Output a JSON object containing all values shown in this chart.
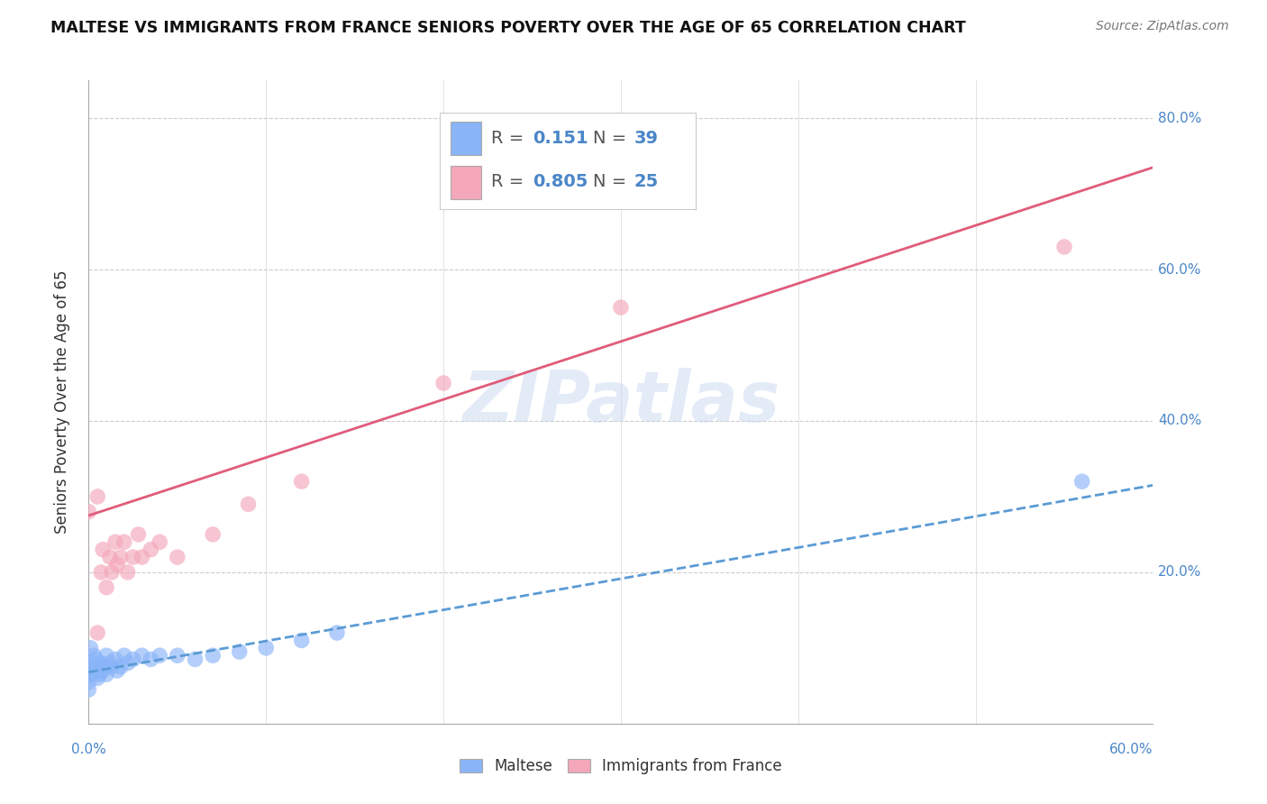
{
  "title": "MALTESE VS IMMIGRANTS FROM FRANCE SENIORS POVERTY OVER THE AGE OF 65 CORRELATION CHART",
  "source_text": "Source: ZipAtlas.com",
  "ylabel": "Seniors Poverty Over the Age of 65",
  "xlim": [
    0.0,
    0.6
  ],
  "ylim": [
    0.0,
    0.85
  ],
  "xticks": [
    0.0,
    0.1,
    0.2,
    0.3,
    0.4,
    0.5,
    0.6
  ],
  "xticklabels_show": [
    "0.0%",
    "",
    "",
    "",
    "",
    "",
    "60.0%"
  ],
  "ytick_positions": [
    0.0,
    0.2,
    0.4,
    0.6,
    0.8
  ],
  "yticklabels": [
    "",
    "20.0%",
    "40.0%",
    "60.0%",
    "80.0%"
  ],
  "watermark": "ZIPatlas",
  "legend_R1": "0.151",
  "legend_N1": "39",
  "legend_R2": "0.805",
  "legend_N2": "25",
  "maltese_color": "#8ab4f8",
  "france_color": "#f4a7b9",
  "maltese_line_color": "#5b9bd5",
  "france_line_color": "#e05c7a",
  "background_color": "#ffffff",
  "grid_color": "#cccccc",
  "maltese_x": [
    0.0,
    0.0,
    0.001,
    0.001,
    0.002,
    0.002,
    0.003,
    0.003,
    0.004,
    0.004,
    0.005,
    0.005,
    0.006,
    0.006,
    0.007,
    0.008,
    0.009,
    0.01,
    0.01,
    0.012,
    0.013,
    0.015,
    0.016,
    0.018,
    0.02,
    0.022,
    0.025,
    0.03,
    0.035,
    0.04,
    0.05,
    0.06,
    0.07,
    0.085,
    0.1,
    0.12,
    0.14,
    0.56,
    0.0
  ],
  "maltese_y": [
    0.055,
    0.07,
    0.065,
    0.1,
    0.08,
    0.065,
    0.09,
    0.075,
    0.07,
    0.085,
    0.06,
    0.075,
    0.07,
    0.065,
    0.08,
    0.07,
    0.075,
    0.065,
    0.09,
    0.08,
    0.075,
    0.085,
    0.07,
    0.075,
    0.09,
    0.08,
    0.085,
    0.09,
    0.085,
    0.09,
    0.09,
    0.085,
    0.09,
    0.095,
    0.1,
    0.11,
    0.12,
    0.32,
    0.045
  ],
  "france_x": [
    0.0,
    0.005,
    0.007,
    0.008,
    0.01,
    0.012,
    0.013,
    0.015,
    0.016,
    0.018,
    0.02,
    0.022,
    0.025,
    0.028,
    0.03,
    0.035,
    0.04,
    0.05,
    0.07,
    0.09,
    0.12,
    0.2,
    0.3,
    0.55,
    0.005
  ],
  "france_y": [
    0.28,
    0.3,
    0.2,
    0.23,
    0.18,
    0.22,
    0.2,
    0.24,
    0.21,
    0.22,
    0.24,
    0.2,
    0.22,
    0.25,
    0.22,
    0.23,
    0.24,
    0.22,
    0.25,
    0.29,
    0.32,
    0.45,
    0.55,
    0.63,
    0.12
  ],
  "france_line_x0": 0.0,
  "france_line_y0": 0.275,
  "france_line_x1": 0.6,
  "france_line_y1": 0.735,
  "maltese_line_x0": 0.0,
  "maltese_line_y0": 0.068,
  "maltese_line_x1": 0.6,
  "maltese_line_y1": 0.315
}
